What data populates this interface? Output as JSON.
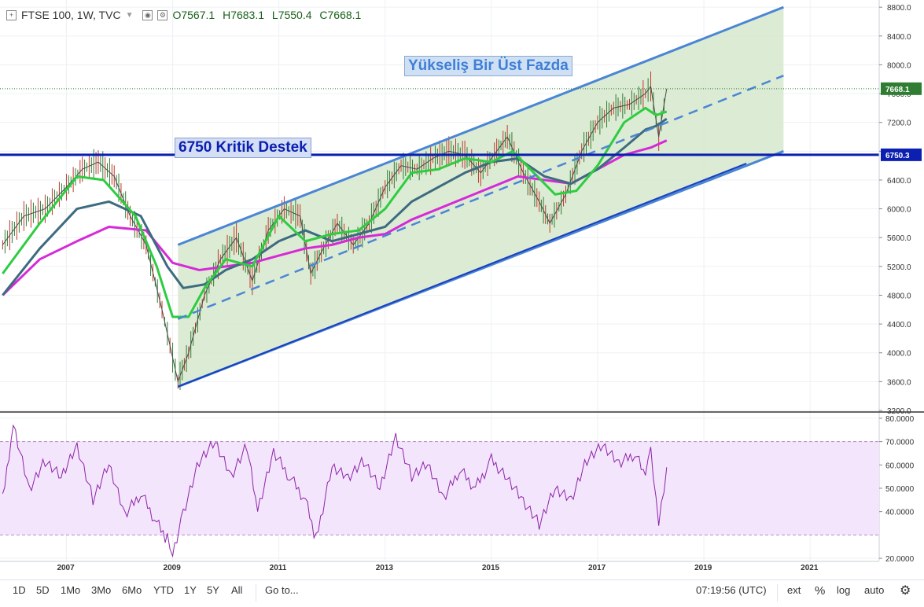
{
  "header": {
    "symbol": "FTSE 100, 1W, TVC",
    "open": "O7567.1",
    "high": "H7683.1",
    "low": "L7550.4",
    "close": "C7668.1"
  },
  "annotations": {
    "channel_label": "Yükseliş Bir Üst Fazda",
    "support_label": "6750 Kritik Destek"
  },
  "colors": {
    "sma_fast": "#2ecc40",
    "sma_mid": "#3d6b80",
    "sma_slow": "#d62ad6",
    "support": "#0b1fb0",
    "channel": "#4a86d4",
    "channel_fill": "#d6e8cc",
    "rsi": "#8e24aa",
    "rsi_band": "#f3e5fb"
  },
  "chart_data": [
    {
      "type": "line",
      "name": "price",
      "ylim": [
        3200,
        8900
      ],
      "y_ticks": [
        "8800.0",
        "8400.0",
        "8000.0",
        "7600.0",
        "7200.0",
        "6800.0",
        "6400.0",
        "6000.0",
        "5600.0",
        "5200.0",
        "4800.0",
        "4400.0",
        "4000.0",
        "3600.0",
        "3200.0"
      ],
      "x_ticks": [
        "2007",
        "2009",
        "2011",
        "2013",
        "2015",
        "2017",
        "2019",
        "2021"
      ],
      "x_tick_years": [
        2007,
        2009,
        2011,
        2013,
        2015,
        2017,
        2019,
        2021
      ],
      "xlim": [
        2005.75,
        2022.3
      ],
      "last_price_label": "7668.1",
      "last_price": 7668.1,
      "support_price_label": "6750.3",
      "support_price": 6750.3,
      "price_x": [
        2005.8,
        2006.2,
        2006.6,
        2007.0,
        2007.3,
        2007.6,
        2007.9,
        2008.2,
        2008.5,
        2008.8,
        2008.95,
        2009.1,
        2009.3,
        2009.6,
        2009.9,
        2010.2,
        2010.5,
        2010.8,
        2011.1,
        2011.4,
        2011.6,
        2011.8,
        2012.1,
        2012.4,
        2012.7,
        2013.0,
        2013.3,
        2013.6,
        2013.9,
        2014.2,
        2014.5,
        2014.8,
        2015.1,
        2015.3,
        2015.6,
        2015.9,
        2016.1,
        2016.4,
        2016.7,
        2017.0,
        2017.3,
        2017.6,
        2017.9,
        2018.0,
        2018.15,
        2018.3
      ],
      "price_y": [
        5500,
        5900,
        6000,
        6300,
        6550,
        6650,
        6450,
        5900,
        5500,
        4600,
        4100,
        3600,
        4000,
        4800,
        5300,
        5600,
        5000,
        5700,
        6000,
        5900,
        5100,
        5400,
        5800,
        5500,
        5800,
        6300,
        6600,
        6550,
        6700,
        6800,
        6750,
        6500,
        6800,
        7000,
        6500,
        6100,
        5800,
        6200,
        6800,
        7200,
        7400,
        7450,
        7600,
        7700,
        7000,
        7668
      ],
      "sma_fast_x": [
        2005.8,
        2006.5,
        2007.2,
        2007.7,
        2008.3,
        2008.7,
        2009.0,
        2009.3,
        2009.6,
        2010.0,
        2010.5,
        2011.0,
        2011.5,
        2012.0,
        2012.5,
        2013.0,
        2013.5,
        2014.0,
        2014.5,
        2015.0,
        2015.4,
        2015.8,
        2016.2,
        2016.6,
        2017.0,
        2017.5,
        2017.9,
        2018.1,
        2018.3
      ],
      "sma_fast_y": [
        5100,
        5800,
        6450,
        6400,
        5900,
        5200,
        4500,
        4500,
        4900,
        5300,
        5200,
        5900,
        5550,
        5650,
        5700,
        6000,
        6500,
        6550,
        6700,
        6650,
        6800,
        6500,
        6200,
        6250,
        6600,
        7200,
        7400,
        7300,
        7350
      ],
      "sma_mid_x": [
        2005.8,
        2006.5,
        2007.2,
        2007.8,
        2008.4,
        2008.9,
        2009.2,
        2009.6,
        2010.0,
        2010.5,
        2011.0,
        2011.5,
        2012.0,
        2012.5,
        2013.0,
        2013.5,
        2014.0,
        2014.5,
        2015.0,
        2015.5,
        2016.0,
        2016.5,
        2017.0,
        2017.5,
        2017.9,
        2018.1,
        2018.3
      ],
      "sma_mid_y": [
        4800,
        5450,
        6000,
        6100,
        5900,
        5200,
        4900,
        4950,
        5150,
        5300,
        5550,
        5700,
        5550,
        5650,
        5750,
        6100,
        6300,
        6500,
        6650,
        6700,
        6450,
        6350,
        6550,
        6850,
        7100,
        7150,
        7250
      ],
      "sma_slow_x": [
        2005.8,
        2006.5,
        2007.2,
        2007.8,
        2008.5,
        2009.0,
        2009.5,
        2010.0,
        2010.5,
        2011.0,
        2011.5,
        2012.0,
        2012.5,
        2013.0,
        2013.5,
        2014.0,
        2014.5,
        2015.0,
        2015.5,
        2016.0,
        2016.5,
        2017.0,
        2017.5,
        2018.0,
        2018.3
      ],
      "sma_slow_y": [
        4800,
        5300,
        5550,
        5750,
        5700,
        5250,
        5150,
        5200,
        5250,
        5350,
        5450,
        5500,
        5600,
        5650,
        5850,
        6000,
        6150,
        6300,
        6450,
        6400,
        6350,
        6550,
        6750,
        6850,
        6950
      ]
    },
    {
      "type": "line",
      "name": "RSI",
      "ylim": [
        19,
        82
      ],
      "y_ticks": [
        "80.0000",
        "70.0000",
        "60.0000",
        "50.0000",
        "40.0000",
        "20.0000"
      ],
      "y_tick_values": [
        80,
        70,
        60,
        50,
        40,
        20
      ],
      "band": [
        30,
        70
      ],
      "x": [
        2005.8,
        2006.0,
        2006.3,
        2006.6,
        2006.9,
        2007.2,
        2007.5,
        2007.8,
        2008.1,
        2008.4,
        2008.7,
        2008.9,
        2009.0,
        2009.2,
        2009.5,
        2009.8,
        2010.1,
        2010.4,
        2010.6,
        2010.9,
        2011.2,
        2011.5,
        2011.7,
        2012.0,
        2012.3,
        2012.6,
        2012.9,
        2013.2,
        2013.5,
        2013.8,
        2014.1,
        2014.4,
        2014.7,
        2015.0,
        2015.3,
        2015.6,
        2015.9,
        2016.2,
        2016.5,
        2016.8,
        2017.1,
        2017.4,
        2017.7,
        2017.9,
        2018.0,
        2018.15,
        2018.3
      ],
      "values": [
        45,
        78,
        50,
        62,
        55,
        68,
        45,
        60,
        38,
        48,
        35,
        28,
        22,
        40,
        62,
        70,
        55,
        68,
        40,
        65,
        55,
        45,
        28,
        60,
        55,
        62,
        50,
        72,
        55,
        60,
        45,
        58,
        50,
        62,
        55,
        45,
        35,
        50,
        45,
        62,
        68,
        60,
        65,
        55,
        65,
        35,
        59
      ]
    }
  ],
  "toolbar": {
    "ranges": [
      "1D",
      "5D",
      "1Mo",
      "3Mo",
      "6Mo",
      "YTD",
      "1Y",
      "5Y",
      "All"
    ],
    "goto": "Go to...",
    "time": "07:19:56 (UTC)",
    "ext": "ext",
    "percent": "%",
    "log": "log",
    "auto": "auto"
  }
}
